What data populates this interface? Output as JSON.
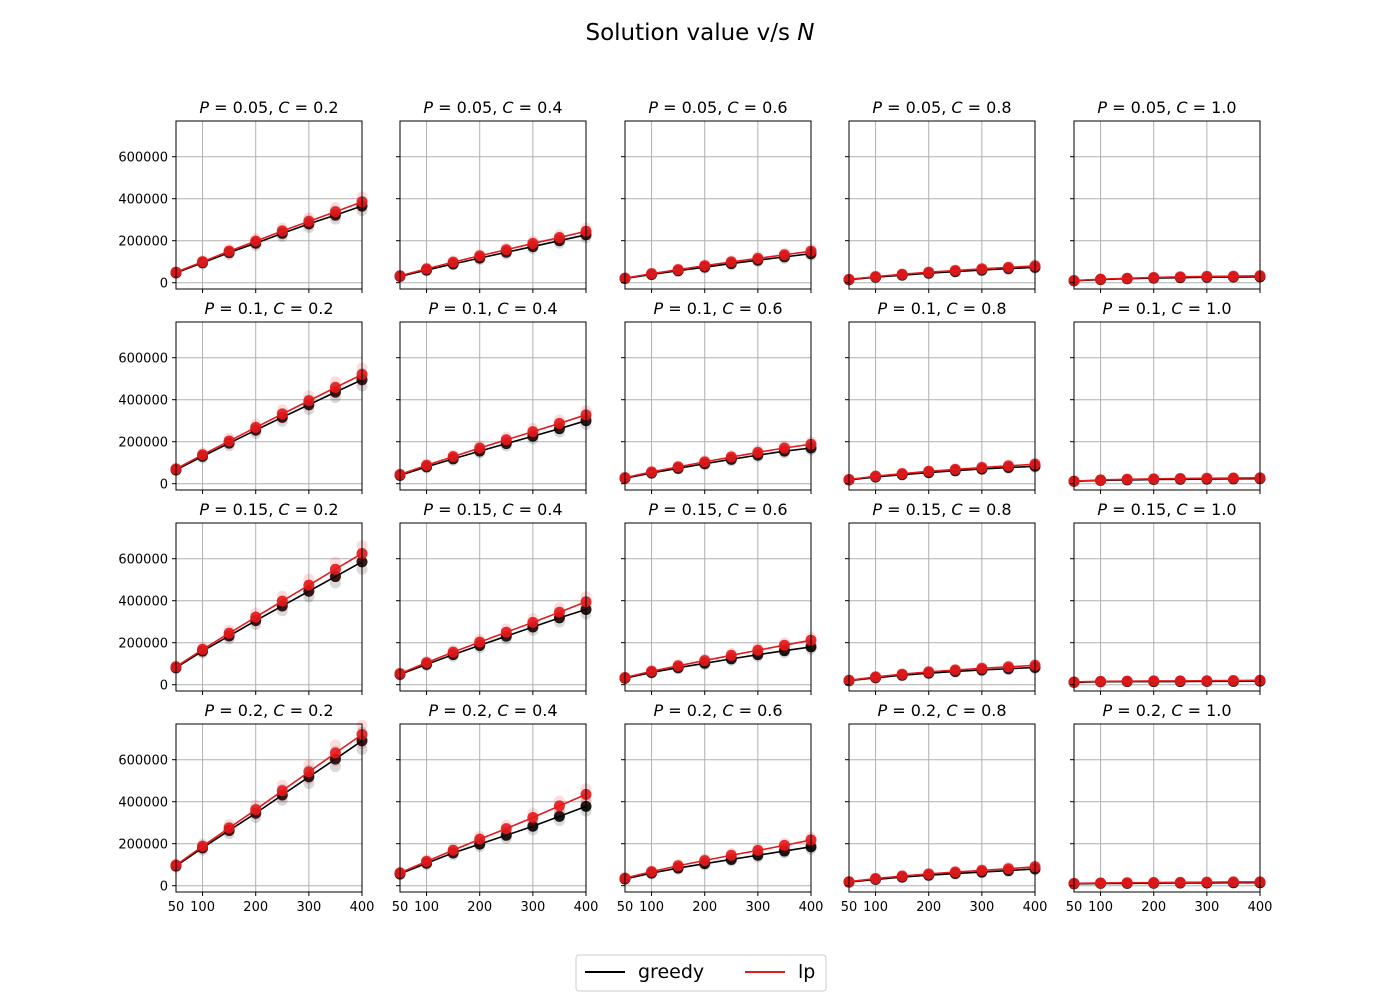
{
  "title_prefix": "Solution value v/s ",
  "title_var": "N",
  "legend": [
    {
      "label": "greedy",
      "color": "#000000"
    },
    {
      "label": "lp",
      "color": "#e41a1c"
    }
  ],
  "chart_data": {
    "type": "line",
    "title": "Solution value v/s N",
    "x": [
      50,
      100,
      150,
      200,
      250,
      300,
      350,
      400
    ],
    "xlim": [
      50,
      400
    ],
    "ylim": [
      -30000,
      770000
    ],
    "x_ticks": [
      100,
      200,
      300,
      400
    ],
    "y_ticks": [
      0,
      200000,
      400000,
      600000
    ],
    "grid": true,
    "legend_position": "bottom-center",
    "rows": [
      0.05,
      0.1,
      0.15,
      0.2
    ],
    "cols": [
      0.2,
      0.4,
      0.6,
      0.8,
      1.0
    ],
    "panels": [
      {
        "title_p": "0.05",
        "title_c": "0.2",
        "series": [
          {
            "name": "greedy",
            "color": "#000000",
            "values": [
              47000,
              95000,
              143000,
              188000,
              235000,
              280000,
              322000,
              365000
            ]
          },
          {
            "name": "lp",
            "color": "#e41a1c",
            "values": [
              50000,
              100000,
              150000,
              198000,
              246000,
              292000,
              338000,
              385000
            ]
          }
        ]
      },
      {
        "title_p": "0.05",
        "title_c": "0.4",
        "series": [
          {
            "name": "greedy",
            "color": "#000000",
            "values": [
              30000,
              60000,
              89000,
              117000,
              145000,
              172000,
              200000,
              228000
            ]
          },
          {
            "name": "lp",
            "color": "#e41a1c",
            "values": [
              33000,
              66000,
              98000,
              128000,
              157000,
              187000,
              215000,
              245000
            ]
          }
        ]
      },
      {
        "title_p": "0.05",
        "title_c": "0.6",
        "series": [
          {
            "name": "greedy",
            "color": "#000000",
            "values": [
              20000,
              39000,
              57000,
              74000,
              91000,
              107000,
              123000,
              138000
            ]
          },
          {
            "name": "lp",
            "color": "#e41a1c",
            "values": [
              22000,
              43000,
              62000,
              81000,
              99000,
              116000,
              133000,
              150000
            ]
          }
        ]
      },
      {
        "title_p": "0.05",
        "title_c": "0.8",
        "series": [
          {
            "name": "greedy",
            "color": "#000000",
            "values": [
              14000,
              26000,
              36000,
              45000,
              53000,
              60000,
              67000,
              73000
            ]
          },
          {
            "name": "lp",
            "color": "#e41a1c",
            "values": [
              16000,
              29000,
              40000,
              50000,
              58000,
              66000,
              73000,
              80000
            ]
          }
        ]
      },
      {
        "title_p": "0.05",
        "title_c": "1.0",
        "series": [
          {
            "name": "greedy",
            "color": "#000000",
            "values": [
              9000,
              15000,
              19000,
              22000,
              24000,
              26000,
              27000,
              28000
            ]
          },
          {
            "name": "lp",
            "color": "#e41a1c",
            "values": [
              10000,
              17000,
              21000,
              25000,
              28000,
              30000,
              31000,
              33000
            ]
          }
        ]
      },
      {
        "title_p": "0.1",
        "title_c": "0.2",
        "series": [
          {
            "name": "greedy",
            "color": "#000000",
            "values": [
              66000,
              130000,
              193000,
              255000,
              316000,
              376000,
              436000,
              495000
            ]
          },
          {
            "name": "lp",
            "color": "#e41a1c",
            "values": [
              70000,
              138000,
              203000,
              268000,
              332000,
              395000,
              458000,
              520000
            ]
          }
        ]
      },
      {
        "title_p": "0.1",
        "title_c": "0.4",
        "series": [
          {
            "name": "greedy",
            "color": "#000000",
            "values": [
              40000,
              80000,
              118000,
              155000,
              191000,
              226000,
              262000,
              300000
            ]
          },
          {
            "name": "lp",
            "color": "#e41a1c",
            "values": [
              44000,
              88000,
              129000,
              170000,
              209000,
              248000,
              287000,
              328000
            ]
          }
        ]
      },
      {
        "title_p": "0.1",
        "title_c": "0.6",
        "series": [
          {
            "name": "greedy",
            "color": "#000000",
            "values": [
              26000,
              51000,
              73000,
              95000,
              116000,
              136000,
              155000,
              170000
            ]
          },
          {
            "name": "lp",
            "color": "#e41a1c",
            "values": [
              29000,
              56000,
              80000,
              104000,
              127000,
              149000,
              170000,
              188000
            ]
          }
        ]
      },
      {
        "title_p": "0.1",
        "title_c": "0.8",
        "series": [
          {
            "name": "greedy",
            "color": "#000000",
            "values": [
              18000,
              32000,
              43000,
              53000,
              62000,
              70000,
              77000,
              83000
            ]
          },
          {
            "name": "lp",
            "color": "#e41a1c",
            "values": [
              20000,
              36000,
              48000,
              59000,
              68000,
              77000,
              85000,
              93000
            ]
          }
        ]
      },
      {
        "title_p": "0.1",
        "title_c": "1.0",
        "series": [
          {
            "name": "greedy",
            "color": "#000000",
            "values": [
              11000,
              16000,
              18000,
              20000,
              21000,
              22000,
              23000,
              24000
            ]
          },
          {
            "name": "lp",
            "color": "#e41a1c",
            "values": [
              12000,
              18000,
              21000,
              23000,
              25000,
              26000,
              27000,
              28000
            ]
          }
        ]
      },
      {
        "title_p": "0.15",
        "title_c": "0.2",
        "series": [
          {
            "name": "greedy",
            "color": "#000000",
            "values": [
              81000,
              160000,
              232000,
              305000,
              375000,
              445000,
              515000,
              585000
            ]
          },
          {
            "name": "lp",
            "color": "#e41a1c",
            "values": [
              85000,
              168000,
              245000,
              322000,
              398000,
              474000,
              550000,
              625000
            ]
          }
        ]
      },
      {
        "title_p": "0.15",
        "title_c": "0.4",
        "series": [
          {
            "name": "greedy",
            "color": "#000000",
            "values": [
              49000,
              97000,
              143000,
              187000,
              231000,
              275000,
              318000,
              358000
            ]
          },
          {
            "name": "lp",
            "color": "#e41a1c",
            "values": [
              53000,
              105000,
              155000,
              203000,
              250000,
              297000,
              345000,
              395000
            ]
          }
        ]
      },
      {
        "title_p": "0.15",
        "title_c": "0.6",
        "series": [
          {
            "name": "greedy",
            "color": "#000000",
            "values": [
              31000,
              58000,
              81000,
              102000,
              123000,
              143000,
              162000,
              180000
            ]
          },
          {
            "name": "lp",
            "color": "#e41a1c",
            "values": [
              34000,
              64000,
              90000,
              115000,
              140000,
              164000,
              188000,
              212000
            ]
          }
        ]
      },
      {
        "title_p": "0.15",
        "title_c": "0.8",
        "series": [
          {
            "name": "greedy",
            "color": "#000000",
            "values": [
              19000,
              33000,
              45000,
              55000,
              63000,
              70000,
              76000,
              82000
            ]
          },
          {
            "name": "lp",
            "color": "#e41a1c",
            "values": [
              21000,
              37000,
              50000,
              61000,
              70000,
              78000,
              85000,
              92000
            ]
          }
        ]
      },
      {
        "title_p": "0.15",
        "title_c": "1.0",
        "series": [
          {
            "name": "greedy",
            "color": "#000000",
            "values": [
              11000,
              14000,
              15000,
              15000,
              15000,
              16000,
              16000,
              17000
            ]
          },
          {
            "name": "lp",
            "color": "#e41a1c",
            "values": [
              13000,
              16000,
              17000,
              18000,
              18000,
              19000,
              20000,
              21000
            ]
          }
        ]
      },
      {
        "title_p": "0.2",
        "title_c": "0.2",
        "series": [
          {
            "name": "greedy",
            "color": "#000000",
            "values": [
              94000,
              180000,
              263000,
              345000,
              432000,
              518000,
              603000,
              690000
            ]
          },
          {
            "name": "lp",
            "color": "#e41a1c",
            "values": [
              98000,
              188000,
              275000,
              362000,
              452000,
              542000,
              632000,
              720000
            ]
          }
        ]
      },
      {
        "title_p": "0.2",
        "title_c": "0.4",
        "series": [
          {
            "name": "greedy",
            "color": "#000000",
            "values": [
              56000,
              107000,
              156000,
              198000,
              240000,
              283000,
              330000,
              378000
            ]
          },
          {
            "name": "lp",
            "color": "#e41a1c",
            "values": [
              61000,
              116000,
              169000,
              222000,
              272000,
              325000,
              380000,
              435000
            ]
          }
        ]
      },
      {
        "title_p": "0.2",
        "title_c": "0.6",
        "series": [
          {
            "name": "greedy",
            "color": "#000000",
            "values": [
              32000,
              60000,
              84000,
              105000,
              125000,
              145000,
              165000,
              185000
            ]
          },
          {
            "name": "lp",
            "color": "#e41a1c",
            "values": [
              36000,
              67000,
              95000,
              120000,
              145000,
              168000,
              192000,
              218000
            ]
          }
        ]
      },
      {
        "title_p": "0.2",
        "title_c": "0.8",
        "series": [
          {
            "name": "greedy",
            "color": "#000000",
            "values": [
              17000,
              30000,
              41000,
              50000,
              58000,
              65000,
              72000,
              80000
            ]
          },
          {
            "name": "lp",
            "color": "#e41a1c",
            "values": [
              19000,
              34000,
              46000,
              56000,
              65000,
              73000,
              81000,
              90000
            ]
          }
        ]
      },
      {
        "title_p": "0.2",
        "title_c": "1.0",
        "series": [
          {
            "name": "greedy",
            "color": "#000000",
            "values": [
              9000,
              11000,
              11000,
              12000,
              13000,
              13000,
              14000,
              14000
            ]
          },
          {
            "name": "lp",
            "color": "#e41a1c",
            "values": [
              11000,
              13000,
              14000,
              15000,
              16000,
              17000,
              18000,
              18000
            ]
          }
        ]
      }
    ]
  }
}
